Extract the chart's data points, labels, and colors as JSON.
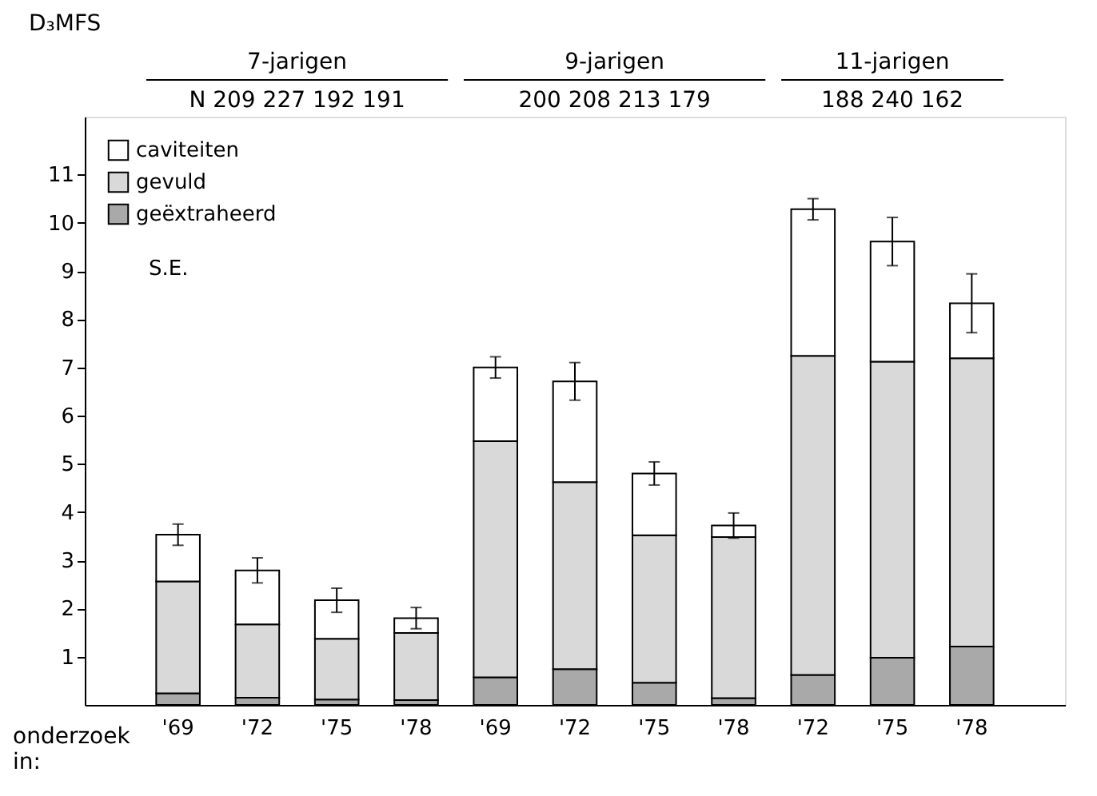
{
  "chart_data": {
    "type": "bar",
    "stacked": true,
    "ylabel": "D₃MFS",
    "xlabel": "onderzoek in:",
    "categories": [
      "'69",
      "'72",
      "'75",
      "'78",
      "'69",
      "'72",
      "'75",
      "'78",
      "'72",
      "'75",
      "'78"
    ],
    "series": [
      {
        "name": "geëxtraheerd",
        "color": "#a9a9a9",
        "values": [
          0.24,
          0.15,
          0.11,
          0.1,
          0.57,
          0.74,
          0.46,
          0.14,
          0.62,
          0.98,
          1.21
        ]
      },
      {
        "name": "gevuld",
        "color": "#d9d9d9",
        "values": [
          2.32,
          1.52,
          1.26,
          1.39,
          4.9,
          3.88,
          3.06,
          3.34,
          6.62,
          6.14,
          5.98
        ]
      },
      {
        "name": "caviteiten",
        "color": "#ffffff",
        "values": [
          0.97,
          1.12,
          0.8,
          0.31,
          1.53,
          2.09,
          1.28,
          0.24,
          3.04,
          2.49,
          1.14
        ],
        "errors": [
          0.22,
          0.26,
          0.25,
          0.22,
          0.22,
          0.39,
          0.24,
          0.26,
          0.22,
          0.5,
          0.61
        ]
      }
    ],
    "ylim": [
      0,
      12.2
    ],
    "yticks": [
      1,
      2,
      3,
      4,
      5,
      6,
      7,
      8,
      9,
      10,
      11
    ],
    "grid": false,
    "legend": "top left",
    "annotations": [
      "7-jarigen",
      "N 209 227 192 191",
      "9-jarigen",
      "200 208 213 179",
      "11-jarigen",
      "188 240 162",
      "S.E."
    ]
  }
}
